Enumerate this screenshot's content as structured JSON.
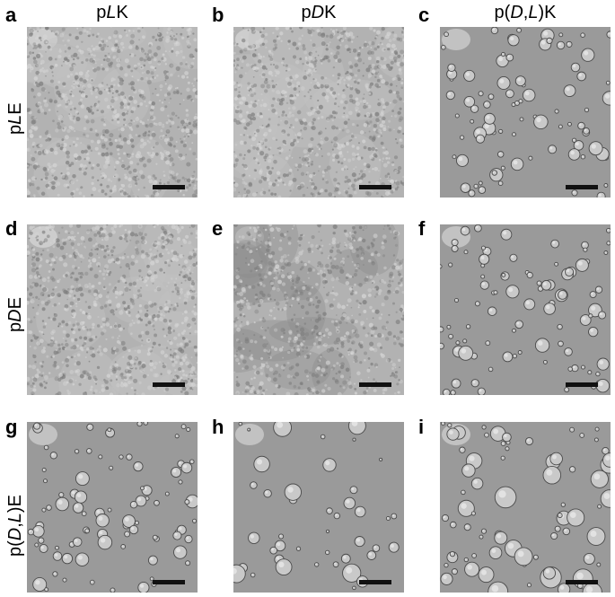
{
  "columns": [
    "pLK",
    "pDK",
    "p(D,L)K"
  ],
  "columns_markup": [
    "p<i>L</i>K",
    "p<i>D</i>K",
    "p(<i>D</i>,<i>L</i>)K"
  ],
  "rows": [
    "pLE",
    "pDE",
    "p(D,L)E"
  ],
  "rows_markup": [
    "p<i>L</i>E",
    "p<i>D</i>E",
    "p(<i>D</i>,<i>L</i>)E"
  ],
  "panels": [
    {
      "label": "a",
      "texture": "aggregate",
      "seed": 11
    },
    {
      "label": "b",
      "texture": "aggregate",
      "seed": 23
    },
    {
      "label": "c",
      "texture": "droplets",
      "seed": 37
    },
    {
      "label": "d",
      "texture": "aggregate",
      "seed": 41
    },
    {
      "label": "e",
      "texture": "aggregate-dark",
      "seed": 53
    },
    {
      "label": "f",
      "texture": "droplets",
      "seed": 67
    },
    {
      "label": "g",
      "texture": "droplets",
      "seed": 71
    },
    {
      "label": "h",
      "texture": "droplets-sparse",
      "seed": 83
    },
    {
      "label": "i",
      "texture": "droplets-large",
      "seed": 97
    }
  ],
  "colors": {
    "background": "#ffffff",
    "aggregate_bg": "#b2b2b2",
    "aggregate_cluster": "#7e7e7e",
    "droplet_bg": "#9a9a9a",
    "droplet_rim": "#4a4a4a",
    "droplet_fill": "#c9c9c9",
    "scalebar": "#111111"
  }
}
